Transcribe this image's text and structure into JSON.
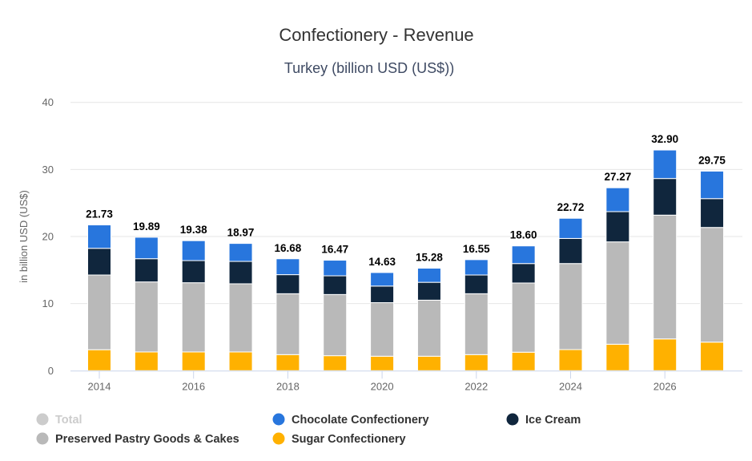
{
  "chart_data": {
    "type": "bar",
    "stacked": true,
    "title": "Confectionery - Revenue",
    "subtitle": "Turkey (billion USD (US$))",
    "xlabel": "",
    "ylabel": "in billion USD (US$)",
    "ylim": [
      0,
      40
    ],
    "yticks": [
      0,
      10,
      20,
      30,
      40
    ],
    "grid": true,
    "categories": [
      "2014",
      "2015",
      "2016",
      "2017",
      "2018",
      "2019",
      "2020",
      "2021",
      "2022",
      "2023",
      "2024",
      "2025",
      "2026",
      "2027"
    ],
    "xtick_labels": [
      "2014",
      "2016",
      "2018",
      "2020",
      "2022",
      "2024",
      "2026"
    ],
    "totals": [
      "21.73",
      "19.89",
      "19.38",
      "18.97",
      "16.68",
      "16.47",
      "14.63",
      "15.28",
      "16.55",
      "18.60",
      "22.72",
      "27.27",
      "32.90",
      "29.75"
    ],
    "series": [
      {
        "name": "Sugar Confectionery",
        "color": "#ffb100",
        "values": [
          3.12,
          2.79,
          2.79,
          2.79,
          2.39,
          2.23,
          2.15,
          2.15,
          2.39,
          2.75,
          3.14,
          3.94,
          4.73,
          4.25
        ]
      },
      {
        "name": "Preserved Pastry Goods & Cakes",
        "color": "#b9b9b9",
        "values": [
          11.14,
          10.44,
          10.32,
          10.16,
          9.08,
          9.12,
          7.99,
          8.36,
          9.08,
          10.32,
          12.83,
          15.26,
          18.46,
          17.1
        ]
      },
      {
        "name": "Ice Cream",
        "color": "#10263d",
        "values": [
          3.98,
          3.46,
          3.3,
          3.34,
          2.84,
          2.79,
          2.47,
          2.66,
          2.79,
          2.9,
          3.74,
          4.51,
          5.46,
          4.3
        ]
      },
      {
        "name": "Chocolate Confectionery",
        "color": "#2876dd",
        "values": [
          3.49,
          3.2,
          2.97,
          2.68,
          2.37,
          2.33,
          2.02,
          2.11,
          2.29,
          2.63,
          3.01,
          3.56,
          4.25,
          4.1
        ]
      }
    ],
    "legend": {
      "position": "bottom-left",
      "items": [
        {
          "name": "Total",
          "color": "#cccccc",
          "disabled": true
        },
        {
          "name": "Chocolate Confectionery",
          "color": "#2876dd",
          "disabled": false
        },
        {
          "name": "Ice Cream",
          "color": "#10263d",
          "disabled": false
        },
        {
          "name": "Preserved Pastry Goods & Cakes",
          "color": "#b9b9b9",
          "disabled": false
        },
        {
          "name": "Sugar Confectionery",
          "color": "#ffb100",
          "disabled": false
        }
      ]
    }
  }
}
